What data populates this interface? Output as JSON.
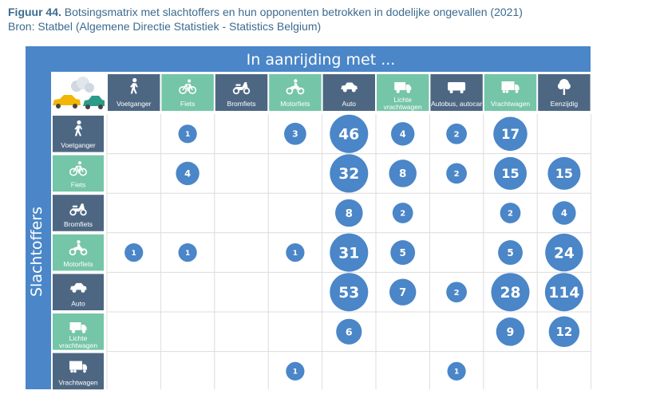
{
  "caption": {
    "figure_label": "Figuur 44.",
    "title": "Botsingsmatrix met slachtoffers en hun opponenten betrokken in dodelijke ongevallen (2021)",
    "source": "Bron: Statbel (Algemene Directie Statistiek - Statistics Belgium)"
  },
  "colors": {
    "frame_blue": "#4a86c8",
    "header_slate": "#4d6783",
    "header_teal": "#75c5a8",
    "bubble": "#4a86c8",
    "grid_line": "#dcdcdc"
  },
  "chart_data": {
    "type": "heatmap",
    "column_header": "In aanrijding met ...",
    "row_header": "Slachtoffers",
    "columns": [
      {
        "label": "Voetganger",
        "icon": "pedestrian-icon",
        "color": "slate"
      },
      {
        "label": "Fiets",
        "icon": "bicycle-icon",
        "color": "teal"
      },
      {
        "label": "Bromfiets",
        "icon": "moped-icon",
        "color": "slate"
      },
      {
        "label": "Motorfiets",
        "icon": "motorcycle-icon",
        "color": "teal"
      },
      {
        "label": "Auto",
        "icon": "car-icon",
        "color": "slate"
      },
      {
        "label": "Lichte vrachtwagen",
        "icon": "van-icon",
        "color": "teal"
      },
      {
        "label": "Autobus, autocar",
        "icon": "bus-icon",
        "color": "slate"
      },
      {
        "label": "Vrachtwagen",
        "icon": "truck-icon",
        "color": "teal"
      },
      {
        "label": "Eenzijdig",
        "icon": "tree-icon",
        "color": "slate"
      }
    ],
    "rows": [
      {
        "label": "Voetganger",
        "icon": "pedestrian-icon",
        "color": "slate"
      },
      {
        "label": "Fiets",
        "icon": "bicycle-icon",
        "color": "teal"
      },
      {
        "label": "Bromfiets",
        "icon": "moped-icon",
        "color": "slate"
      },
      {
        "label": "Motorfiets",
        "icon": "motorcycle-icon",
        "color": "teal"
      },
      {
        "label": "Auto",
        "icon": "car-icon",
        "color": "slate"
      },
      {
        "label": "Lichte vrachtwagen",
        "icon": "van-icon",
        "color": "teal"
      },
      {
        "label": "Vrachtwagen",
        "icon": "truck-icon",
        "color": "slate"
      }
    ],
    "values": [
      [
        null,
        1,
        null,
        3,
        46,
        4,
        2,
        17,
        null
      ],
      [
        null,
        4,
        null,
        null,
        32,
        8,
        2,
        15,
        15
      ],
      [
        null,
        null,
        null,
        null,
        8,
        2,
        null,
        2,
        4
      ],
      [
        1,
        1,
        null,
        1,
        31,
        5,
        null,
        5,
        24
      ],
      [
        null,
        null,
        null,
        null,
        53,
        7,
        2,
        28,
        114
      ],
      [
        null,
        null,
        null,
        null,
        6,
        null,
        null,
        9,
        12
      ],
      [
        null,
        null,
        null,
        1,
        null,
        null,
        1,
        null,
        null
      ]
    ]
  }
}
